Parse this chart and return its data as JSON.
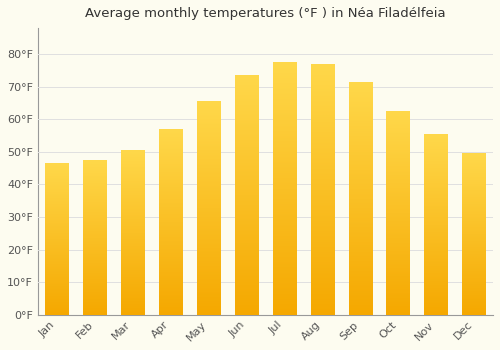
{
  "title": "Average monthly temperatures (°F ) in Néa Filadélfeia",
  "months": [
    "Jan",
    "Feb",
    "Mar",
    "Apr",
    "May",
    "Jun",
    "Jul",
    "Aug",
    "Sep",
    "Oct",
    "Nov",
    "Dec"
  ],
  "values": [
    46.5,
    47.5,
    50.5,
    57.0,
    65.5,
    73.5,
    77.5,
    77.0,
    71.5,
    62.5,
    55.5,
    49.5
  ],
  "bar_color_bottom": "#F5A800",
  "bar_color_top": "#FFD84A",
  "background_color": "#FDFCF0",
  "grid_color": "#E0E0E0",
  "ylim": [
    0,
    88
  ],
  "yticks": [
    0,
    10,
    20,
    30,
    40,
    50,
    60,
    70,
    80
  ],
  "ytick_labels": [
    "0°F",
    "10°F",
    "20°F",
    "30°F",
    "40°F",
    "50°F",
    "60°F",
    "70°F",
    "80°F"
  ],
  "title_fontsize": 9.5,
  "tick_fontsize": 8,
  "bar_width": 0.62
}
